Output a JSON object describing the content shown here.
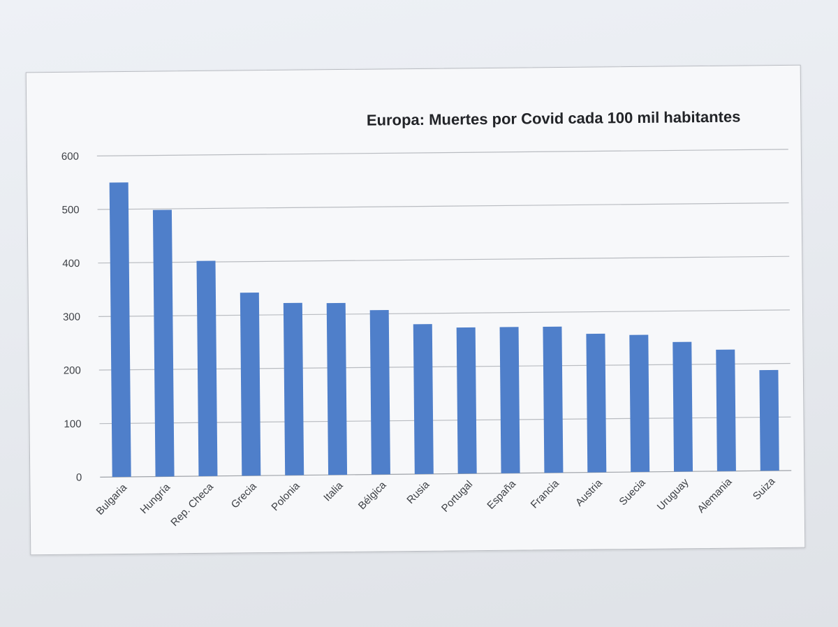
{
  "chart_data": {
    "type": "bar",
    "title": "Europa: Muertes por Covid cada 100 mil habitantes",
    "categories": [
      "Bulgaria",
      "Hungría",
      "Rep. Checa",
      "Grecia",
      "Polonia",
      "Italia",
      "Bélgica",
      "Rusia",
      "Portugal",
      "España",
      "Francia",
      "Austria",
      "Suecia",
      "Uruguay",
      "Alemania",
      "Suiza"
    ],
    "values": [
      550,
      498,
      402,
      342,
      322,
      321,
      307,
      280,
      273,
      273,
      273,
      259,
      256,
      242,
      227,
      188
    ],
    "yticks": [
      "0",
      "100",
      "200",
      "300",
      "400",
      "500",
      "600"
    ],
    "ylim": [
      0,
      600
    ],
    "xlabel": "",
    "ylabel": "",
    "grid": true,
    "bar_color": "#4f7fca"
  }
}
